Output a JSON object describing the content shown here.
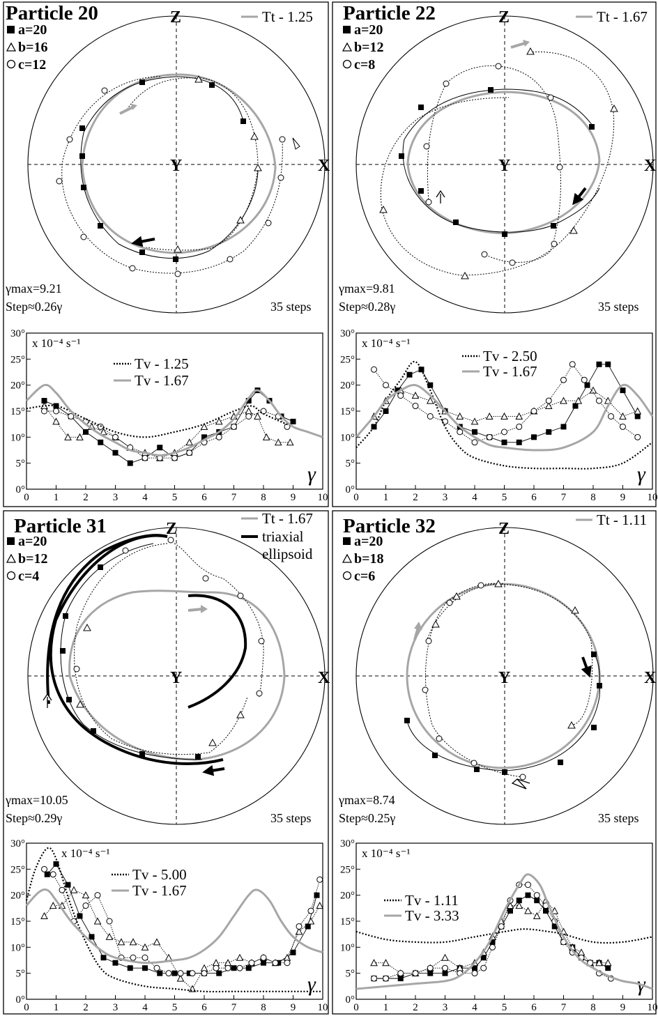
{
  "figure": {
    "gamma_symbol": "γ",
    "unit_label": "x 10⁻⁴ s⁻¹",
    "steps_label": "35 steps",
    "axis_labels": {
      "z": "Z",
      "x": "X",
      "y": "Y"
    },
    "x_ticks": [
      "0",
      "1",
      "2",
      "3",
      "4",
      "5",
      "6",
      "7",
      "8",
      "9",
      "10"
    ],
    "y_ticks": [
      "0°",
      "5°",
      "10°",
      "15°",
      "20°",
      "25°",
      "30°"
    ]
  },
  "colors": {
    "grey_curve": "#a6a6a6",
    "black": "#000000"
  },
  "panels": [
    {
      "title": "Particle 20",
      "legend": [
        "a=20",
        "b=16",
        "c=12"
      ],
      "tt_label": "Tt - 1.25",
      "gamma_max": "γmax=9.21",
      "step": "Step≈0.26γ",
      "tv_labels": [
        "Tv - 1.25",
        "Tv - 1.67"
      ]
    },
    {
      "title": "Particle 22",
      "legend": [
        "a=20",
        "b=12",
        "c=8"
      ],
      "tt_label": "Tt - 1.67",
      "gamma_max": "γmax=9.81",
      "step": "Step≈0.28γ",
      "tv_labels": [
        "Tv - 2.50",
        "Tv - 1.67"
      ]
    },
    {
      "title": "Particle 31",
      "legend": [
        "a=20",
        "b=12",
        "c=4"
      ],
      "tt_label": "Tt - 1.67",
      "extra_legend": [
        "triaxial",
        "ellipsoid"
      ],
      "gamma_max": "γmax=10.05",
      "step": "Step≈0.29γ",
      "tv_labels": [
        "Tv - 5.00",
        "Tv - 1.67"
      ]
    },
    {
      "title": "Particle 32",
      "legend": [
        "a=20",
        "b=18",
        "c=6"
      ],
      "tt_label": "Tt - 1.11",
      "gamma_max": "γmax=8.74",
      "step": "Step≈0.25γ",
      "tv_labels": [
        "Tv - 1.11",
        "Tv - 3.33"
      ]
    }
  ],
  "chart_data": [
    {
      "type": "scatter",
      "panel": "Particle 20",
      "xlim": [
        0,
        10
      ],
      "ylim": [
        0,
        30
      ],
      "series": [
        {
          "name": "a=20",
          "marker": "square",
          "x": [
            0.6,
            1,
            1.5,
            2,
            2.5,
            3,
            3.5,
            4,
            4.5,
            5,
            5.5,
            6,
            6.5,
            7,
            7.5,
            7.8,
            8.2,
            8.6,
            9
          ],
          "y": [
            17,
            16,
            14,
            11,
            9,
            7,
            5,
            6,
            8,
            6,
            7,
            10,
            11,
            12,
            17,
            19,
            17,
            14,
            13
          ]
        },
        {
          "name": "b=16",
          "marker": "triangle",
          "x": [
            0.6,
            1,
            1.4,
            1.8,
            2.2,
            2.6,
            3,
            3.5,
            4,
            4.5,
            5,
            5.5,
            6,
            6.5,
            7,
            7.5,
            7.8,
            8.1,
            8.5,
            8.9
          ],
          "y": [
            16,
            13,
            10,
            10,
            12,
            11,
            10,
            8,
            7,
            6,
            7,
            9,
            12,
            13,
            14,
            15,
            14,
            10,
            9,
            9
          ]
        },
        {
          "name": "c=12",
          "marker": "circle",
          "x": [
            0.6,
            1,
            1.5,
            2,
            2.5,
            3,
            3.5,
            4,
            4.5,
            5,
            5.5,
            6,
            6.5,
            7,
            7.5,
            8,
            8.5,
            8.8
          ],
          "y": [
            15,
            15,
            14,
            13,
            12,
            10,
            8,
            6,
            6,
            6,
            7,
            9,
            10,
            12,
            14,
            15,
            14,
            12
          ]
        },
        {
          "name": "Tv - 1.25",
          "style": "dotted",
          "x": [
            0,
            1,
            2,
            3,
            4,
            5,
            6,
            7,
            7.6,
            8,
            9,
            10
          ],
          "y": [
            15.5,
            16,
            13.5,
            11,
            10,
            11,
            12.5,
            15,
            16,
            14.5,
            12,
            10
          ]
        },
        {
          "name": "Tv - 1.67",
          "style": "grey",
          "x": [
            0,
            0.6,
            1,
            1.5,
            2,
            2.5,
            3,
            3.5,
            4,
            4.5,
            5,
            5.5,
            6,
            6.5,
            7,
            7.5,
            7.8,
            8.2,
            8.6,
            9,
            9.5,
            10
          ],
          "y": [
            17,
            20,
            18.5,
            15,
            12.5,
            10.5,
            9,
            7.5,
            7,
            6.5,
            7,
            8,
            9.5,
            11,
            13.5,
            17.5,
            19,
            17,
            14,
            12,
            11,
            10
          ]
        }
      ]
    },
    {
      "type": "scatter",
      "panel": "Particle 22",
      "xlim": [
        0,
        10
      ],
      "ylim": [
        0,
        30
      ],
      "series": [
        {
          "name": "a=20",
          "marker": "square",
          "x": [
            0.6,
            1,
            1.4,
            1.8,
            2.2,
            2.5,
            3,
            3.5,
            4,
            4.5,
            5,
            5.5,
            6,
            6.5,
            7,
            7.4,
            7.8,
            8.2,
            8.5,
            9,
            9.5
          ],
          "y": [
            12,
            15,
            19,
            22,
            23,
            20,
            15,
            12,
            11,
            10,
            9,
            9,
            10,
            11,
            12,
            16,
            20,
            24,
            24,
            19,
            14
          ]
        },
        {
          "name": "b=12",
          "marker": "triangle",
          "x": [
            0.6,
            1,
            1.5,
            2,
            2.5,
            3,
            3.5,
            4,
            4.5,
            5,
            5.5,
            6,
            6.5,
            7,
            7.5,
            8,
            8.5,
            9,
            9.5
          ],
          "y": [
            14,
            17,
            19,
            18,
            17,
            15,
            14,
            13,
            14,
            14,
            14,
            15,
            16,
            17,
            17,
            19,
            17,
            14,
            15
          ]
        },
        {
          "name": "c=8",
          "marker": "circle",
          "x": [
            0.6,
            1,
            1.5,
            2,
            2.5,
            3,
            3.5,
            4,
            4.5,
            5,
            5.5,
            6,
            6.5,
            7,
            7.3,
            7.7,
            8.2,
            8.6,
            9,
            9.5
          ],
          "y": [
            23,
            20,
            18,
            16,
            14,
            13,
            11,
            9,
            10,
            11,
            12,
            15,
            17,
            21,
            24,
            21,
            17,
            14,
            12,
            10
          ]
        },
        {
          "name": "Tv - 2.50",
          "style": "dotted",
          "x": [
            0,
            0.6,
            1,
            1.5,
            2,
            2.5,
            3,
            3.5,
            4,
            5,
            6,
            7,
            8,
            9,
            10
          ],
          "y": [
            8,
            12,
            17,
            21,
            24.5,
            19,
            12,
            8,
            6,
            4.5,
            4,
            4,
            4,
            5,
            9
          ]
        },
        {
          "name": "Tv - 1.67",
          "style": "grey",
          "x": [
            0,
            0.6,
            1,
            1.5,
            2,
            2.5,
            3,
            3.5,
            4,
            4.5,
            5,
            6,
            7,
            8,
            8.5,
            9,
            9.5,
            10
          ],
          "y": [
            10,
            14,
            17,
            19,
            20,
            18,
            15,
            12,
            10,
            8.5,
            8,
            7.5,
            8,
            11,
            16,
            20,
            18,
            14
          ]
        }
      ]
    },
    {
      "type": "scatter",
      "panel": "Particle 31",
      "xlim": [
        0,
        10
      ],
      "ylim": [
        0,
        30
      ],
      "series": [
        {
          "name": "a=20",
          "marker": "square",
          "x": [
            0.7,
            1,
            1.4,
            1.8,
            2.2,
            2.6,
            3,
            3.5,
            4,
            4.5,
            5,
            5.5,
            6,
            6.5,
            7,
            7.5,
            8,
            8.5,
            9,
            9.5,
            9.8
          ],
          "y": [
            24,
            26,
            22,
            16,
            12,
            8,
            7,
            6,
            6,
            5,
            5,
            5,
            5,
            5,
            6,
            6,
            7,
            7,
            9,
            14,
            20
          ]
        },
        {
          "name": "b=12",
          "marker": "triangle",
          "x": [
            0.6,
            0.9,
            1.2,
            1.6,
            2,
            2.4,
            2.8,
            3.2,
            3.6,
            4,
            4.4,
            4.8,
            5.2,
            5.6,
            6,
            6.4,
            6.8,
            7.2,
            7.6,
            8,
            8.4,
            8.8,
            9.2,
            9.6,
            9.9
          ],
          "y": [
            16,
            18,
            18,
            21,
            20,
            15,
            12,
            11,
            11,
            10,
            11,
            8,
            4,
            2,
            6,
            7,
            7,
            8,
            7,
            8,
            7,
            8,
            13,
            15,
            18
          ]
        },
        {
          "name": "c=4",
          "marker": "circle",
          "x": [
            0.6,
            0.9,
            1.2,
            1.6,
            2,
            2.4,
            2.8,
            3.2,
            3.6,
            4,
            4.4,
            4.8,
            5.2,
            5.6,
            6,
            6.4,
            6.8,
            7.2,
            7.6,
            8,
            8.4,
            8.8,
            9.2,
            9.6,
            9.9
          ],
          "y": [
            25,
            24,
            21,
            15,
            18,
            20,
            15,
            8,
            8,
            8,
            6,
            5,
            5,
            5,
            5,
            6,
            6,
            6,
            7,
            8,
            7,
            7,
            14,
            17,
            23
          ]
        },
        {
          "name": "Tv - 5.00",
          "style": "dotted",
          "x": [
            0,
            0.3,
            0.7,
            1,
            1.5,
            2,
            2.5,
            3,
            4,
            5,
            6,
            7,
            8,
            9,
            9.5,
            10
          ],
          "y": [
            19,
            25,
            29,
            27,
            18,
            11,
            6,
            4,
            2.5,
            2,
            1.5,
            1.5,
            1.5,
            1.5,
            1.5,
            1.5
          ]
        },
        {
          "name": "Tv - 1.67",
          "style": "grey",
          "x": [
            0,
            0.4,
            0.7,
            1,
            1.5,
            2,
            2.5,
            3,
            4,
            5,
            5.5,
            6,
            6.5,
            7,
            7.5,
            7.8,
            8.2,
            8.6,
            9,
            9.5,
            10
          ],
          "y": [
            18,
            20.5,
            21,
            19,
            15,
            12,
            9.5,
            8,
            7,
            7.5,
            8,
            9.5,
            12,
            16,
            20,
            21,
            19,
            15,
            12,
            10,
            9
          ]
        }
      ]
    },
    {
      "type": "scatter",
      "panel": "Particle 32",
      "xlim": [
        0,
        10
      ],
      "ylim": [
        0,
        30
      ],
      "series": [
        {
          "name": "a=20",
          "marker": "square",
          "x": [
            0.6,
            1,
            1.5,
            2,
            2.5,
            3,
            3.5,
            4,
            4.3,
            4.6,
            4.9,
            5.2,
            5.5,
            5.8,
            6.1,
            6.4,
            6.7,
            7,
            7.3,
            7.6,
            7.9,
            8.2,
            8.5
          ],
          "y": [
            4,
            4,
            4,
            5,
            5,
            5,
            6,
            6,
            8,
            11,
            14,
            17,
            19,
            20,
            19,
            17,
            14,
            11,
            10,
            8,
            7,
            7,
            6
          ]
        },
        {
          "name": "b=18",
          "marker": "triangle",
          "x": [
            0.6,
            1,
            1.5,
            2,
            2.5,
            3,
            3.5,
            4,
            4.3,
            4.6,
            4.9,
            5.2,
            5.5,
            5.8,
            6.1,
            6.4,
            6.7,
            7,
            7.3,
            7.6,
            7.9,
            8.2,
            8.5
          ],
          "y": [
            7,
            7,
            5,
            5,
            6,
            8,
            6,
            7,
            9,
            12,
            15,
            18,
            18,
            17,
            16,
            19,
            17,
            13,
            10,
            9,
            7,
            7,
            7
          ]
        },
        {
          "name": "c=6",
          "marker": "circle",
          "x": [
            0.6,
            1,
            1.5,
            2,
            2.5,
            3,
            3.5,
            4,
            4.3,
            4.6,
            4.9,
            5.2,
            5.5,
            5.8,
            6.1,
            6.4,
            6.7,
            7,
            7.3,
            7.6,
            7.9,
            8.2,
            8.6
          ],
          "y": [
            4,
            4,
            5,
            5,
            6,
            6,
            5,
            5,
            6,
            10,
            14,
            19,
            22,
            22,
            20,
            18,
            15,
            11,
            9,
            8,
            7,
            5,
            4
          ]
        },
        {
          "name": "Tv - 1.11",
          "style": "dotted",
          "x": [
            0,
            1,
            2,
            3,
            4,
            5,
            5.7,
            6.5,
            7,
            8,
            9,
            10
          ],
          "y": [
            13,
            11.5,
            11,
            11,
            12,
            13,
            13.5,
            13,
            12.5,
            11,
            11,
            12
          ]
        },
        {
          "name": "Tv - 3.33",
          "style": "grey",
          "x": [
            0,
            1,
            2,
            3,
            3.5,
            4,
            4.5,
            5,
            5.5,
            5.8,
            6.2,
            6.5,
            7,
            7.5,
            8,
            8.5,
            9,
            9.5,
            10
          ],
          "y": [
            2,
            2.5,
            3,
            3.5,
            4.5,
            7,
            11,
            17,
            22,
            24,
            22,
            18,
            12,
            8,
            6,
            4.5,
            3.5,
            3,
            2
          ]
        }
      ]
    }
  ]
}
